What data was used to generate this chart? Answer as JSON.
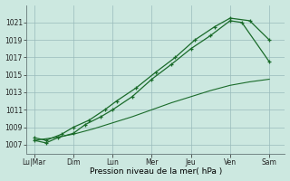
{
  "background_color": "#cce8e0",
  "grid_color": "#99bbbb",
  "line_color": "#1a6b2a",
  "xlabel": "Pression niveau de la mer( hPa )",
  "ylim": [
    1006.0,
    1023.0
  ],
  "yticks": [
    1007,
    1009,
    1011,
    1013,
    1015,
    1017,
    1019,
    1021
  ],
  "x_labels": [
    "Lu|Mar",
    "Dim",
    "Lun",
    "Mer",
    "Jeu",
    "Ven",
    "Sam"
  ],
  "x_tick_pos": [
    0,
    1,
    2,
    3,
    4,
    5,
    6
  ],
  "series": [
    {
      "x": [
        0,
        0.3,
        0.6,
        1.0,
        1.3,
        1.7,
        2.0,
        2.5,
        3.0,
        3.5,
        4.0,
        4.5,
        5.0,
        5.3,
        6.0
      ],
      "y": [
        1007.5,
        1007.2,
        1007.8,
        1008.3,
        1009.3,
        1010.2,
        1011.0,
        1012.5,
        1014.5,
        1016.2,
        1018.0,
        1019.5,
        1021.2,
        1021.0,
        1016.5
      ],
      "marker": "+",
      "linestyle": "-"
    },
    {
      "x": [
        0,
        0.3,
        0.7,
        1.0,
        1.4,
        1.8,
        2.1,
        2.6,
        3.1,
        3.6,
        4.1,
        4.6,
        5.0,
        5.5,
        6.0
      ],
      "y": [
        1007.8,
        1007.5,
        1008.2,
        1009.0,
        1009.8,
        1011.0,
        1012.0,
        1013.5,
        1015.3,
        1017.0,
        1019.0,
        1020.5,
        1021.5,
        1021.2,
        1019.0
      ],
      "marker": "+",
      "linestyle": "-"
    },
    {
      "x": [
        0,
        0.5,
        1.0,
        1.5,
        2.0,
        2.5,
        3.0,
        3.5,
        4.0,
        4.5,
        5.0,
        5.5,
        6.0
      ],
      "y": [
        1007.5,
        1007.8,
        1008.2,
        1008.8,
        1009.5,
        1010.2,
        1011.0,
        1011.8,
        1012.5,
        1013.2,
        1013.8,
        1014.2,
        1014.5
      ],
      "marker": null,
      "linestyle": "-"
    }
  ]
}
